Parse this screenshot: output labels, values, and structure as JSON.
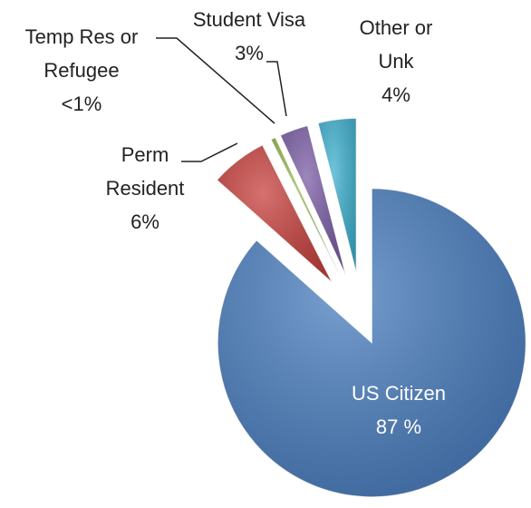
{
  "chart_data": {
    "type": "pie",
    "categories": [
      "US Citizen",
      "Perm Resident",
      "Temp Res or Refugee",
      "Student Visa",
      "Other or Unk"
    ],
    "values": [
      87,
      6,
      0.5,
      3,
      4
    ],
    "value_labels": [
      "87 %",
      "6%",
      "<1%",
      "3%",
      "4%"
    ],
    "colors": [
      "#4a7ebf",
      "#c8423f",
      "#98bb4f",
      "#7b5ea6",
      "#3fb1cf"
    ]
  }
}
